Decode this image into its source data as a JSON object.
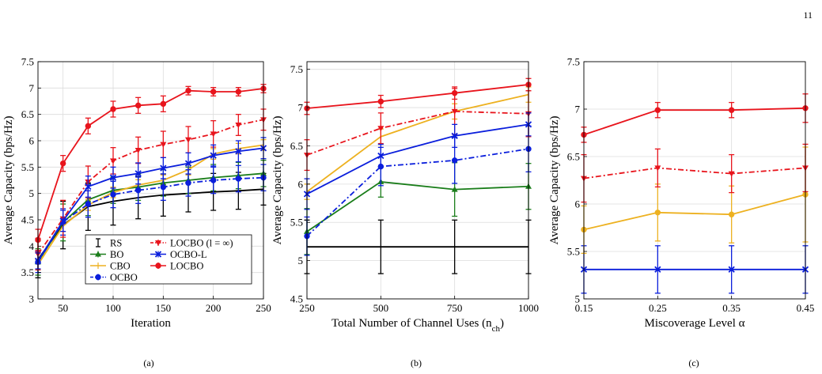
{
  "page_number": "11",
  "chart_data": [
    {
      "id": "a",
      "type": "line",
      "panel_label": "(a)",
      "xlabel": "Iteration",
      "ylabel": "Average Capacity (bps/Hz)",
      "xlim": [
        25,
        250
      ],
      "ylim": [
        3,
        7.5
      ],
      "xticks": [
        50,
        100,
        150,
        200,
        250
      ],
      "yticks": [
        3,
        3.5,
        4,
        4.5,
        5,
        5.5,
        6,
        6.5,
        7,
        7.5
      ],
      "ytick_labels": [
        "3",
        "3.5",
        "4",
        "4.5",
        "5",
        "5.5",
        "6",
        "6.5",
        "7",
        "7.5"
      ],
      "grid": true,
      "legend": {
        "placement": "bottom-center",
        "columns": 2,
        "entries": [
          {
            "name": "RS",
            "ref": "RS"
          },
          {
            "name": "BO",
            "ref": "BO"
          },
          {
            "name": "CBO",
            "ref": "CBO"
          },
          {
            "name": "OCBO",
            "ref": "OCBO"
          },
          {
            "name": "LOCBO (l = ∞)",
            "ref": "LOCBO_inf"
          },
          {
            "name": "OCBO-L",
            "ref": "OCBO-L"
          },
          {
            "name": "LOCBO",
            "ref": "LOCBO"
          }
        ]
      },
      "series": [
        {
          "name": "RS",
          "ref": "RS",
          "color": "#000000",
          "dash": "solid",
          "marker": "none",
          "x": [
            25,
            50,
            75,
            100,
            125,
            150,
            175,
            200,
            225,
            250
          ],
          "y": [
            3.75,
            4.4,
            4.75,
            4.85,
            4.92,
            4.97,
            5.0,
            5.03,
            5.05,
            5.08
          ],
          "err": [
            0.35,
            0.45,
            0.45,
            0.45,
            0.4,
            0.4,
            0.35,
            0.35,
            0.35,
            0.3
          ]
        },
        {
          "name": "BO",
          "ref": "BO",
          "color": "#1a7d1a",
          "dash": "solid",
          "marker": "^",
          "x": [
            25,
            50,
            75,
            100,
            125,
            150,
            175,
            200,
            225,
            250
          ],
          "y": [
            3.7,
            4.45,
            4.88,
            5.06,
            5.12,
            5.2,
            5.25,
            5.3,
            5.34,
            5.38
          ],
          "err": [
            0.25,
            0.35,
            0.3,
            0.25,
            0.25,
            0.25,
            0.25,
            0.25,
            0.25,
            0.25
          ]
        },
        {
          "name": "CBO",
          "ref": "CBO",
          "color": "#edb120",
          "dash": "solid",
          "marker": "none",
          "x": [
            25,
            50,
            75,
            100,
            125,
            150,
            175,
            200,
            225,
            250
          ],
          "y": [
            3.65,
            4.38,
            4.78,
            5.02,
            5.16,
            5.25,
            5.45,
            5.75,
            5.85,
            5.92
          ],
          "err": [
            0.1,
            0.1,
            0.1,
            0.1,
            0.1,
            0.1,
            0.1,
            0.1,
            0.1,
            0.1
          ]
        },
        {
          "name": "OCBO",
          "ref": "OCBO",
          "color": "#0a1edc",
          "dash": "dashdot",
          "marker": "o",
          "x": [
            25,
            50,
            75,
            100,
            125,
            150,
            175,
            200,
            225,
            250
          ],
          "y": [
            3.7,
            4.46,
            4.8,
            4.98,
            5.06,
            5.12,
            5.2,
            5.25,
            5.28,
            5.3
          ],
          "err": [
            0.2,
            0.25,
            0.25,
            0.25,
            0.25,
            0.25,
            0.25,
            0.25,
            0.25,
            0.25
          ]
        },
        {
          "name": "LOCBO (l = ∞)",
          "ref": "LOCBO_inf",
          "color": "#e8141c",
          "dash": "dashdot",
          "marker": "v",
          "x": [
            25,
            50,
            75,
            100,
            125,
            150,
            175,
            200,
            225,
            250
          ],
          "y": [
            3.85,
            4.52,
            5.22,
            5.62,
            5.82,
            5.93,
            6.02,
            6.13,
            6.3,
            6.4
          ],
          "err": [
            0.3,
            0.35,
            0.3,
            0.25,
            0.25,
            0.25,
            0.25,
            0.25,
            0.2,
            0.2
          ]
        },
        {
          "name": "OCBO-L",
          "ref": "OCBO-L",
          "color": "#0a1edc",
          "dash": "solid",
          "marker": "x",
          "x": [
            25,
            50,
            75,
            100,
            125,
            150,
            175,
            200,
            225,
            250
          ],
          "y": [
            3.72,
            4.48,
            5.13,
            5.3,
            5.38,
            5.48,
            5.57,
            5.72,
            5.8,
            5.86
          ],
          "err": [
            0.15,
            0.2,
            0.2,
            0.2,
            0.2,
            0.2,
            0.2,
            0.2,
            0.2,
            0.2
          ]
        },
        {
          "name": "LOCBO",
          "ref": "LOCBO",
          "color": "#e8141c",
          "dash": "solid",
          "marker": "o",
          "x": [
            25,
            50,
            75,
            100,
            125,
            150,
            175,
            200,
            225,
            250
          ],
          "y": [
            4.12,
            5.57,
            6.28,
            6.6,
            6.67,
            6.7,
            6.95,
            6.93,
            6.93,
            6.99
          ],
          "err": [
            0.2,
            0.15,
            0.15,
            0.15,
            0.15,
            0.15,
            0.08,
            0.08,
            0.08,
            0.08
          ]
        }
      ]
    },
    {
      "id": "b",
      "type": "line",
      "panel_label": "(b)",
      "xlabel": "Total Number of Channel Uses (n",
      "xlabel_sub": "ch",
      "xlabel_end": ")",
      "ylabel": "Average Capacity (bps/Hz)",
      "xlim": [
        250,
        1000
      ],
      "ylim": [
        4.5,
        7.6
      ],
      "xticks": [
        250,
        500,
        750,
        1000
      ],
      "yticks": [
        4.5,
        5,
        5.5,
        6,
        6.5,
        7,
        7.5
      ],
      "ytick_labels": [
        "4.5",
        "5",
        "5.5",
        "6",
        "6.5",
        "7",
        "7.5"
      ],
      "grid": true,
      "series": [
        {
          "ref": "RS",
          "color": "#000000",
          "dash": "solid",
          "marker": "none",
          "x": [
            250,
            500,
            750,
            1000
          ],
          "y": [
            5.18,
            5.18,
            5.18,
            5.18
          ],
          "err": [
            0.35,
            0.35,
            0.35,
            0.35
          ]
        },
        {
          "ref": "BO",
          "color": "#1a7d1a",
          "dash": "solid",
          "marker": "^",
          "x": [
            250,
            500,
            750,
            1000
          ],
          "y": [
            5.38,
            6.03,
            5.93,
            5.97
          ],
          "err": [
            0.3,
            0.2,
            0.35,
            0.3
          ]
        },
        {
          "ref": "CBO",
          "color": "#edb120",
          "dash": "solid",
          "marker": "none",
          "x": [
            250,
            500,
            750,
            1000
          ],
          "y": [
            5.9,
            6.62,
            6.95,
            7.17
          ],
          "err": [
            0.1,
            0.1,
            0.1,
            0.1
          ]
        },
        {
          "ref": "OCBO",
          "color": "#0a1edc",
          "dash": "dashdot",
          "marker": "o",
          "x": [
            250,
            500,
            750,
            1000
          ],
          "y": [
            5.32,
            6.23,
            6.31,
            6.46
          ],
          "err": [
            0.25,
            0.25,
            0.3,
            0.3
          ]
        },
        {
          "ref": "LOCBO_inf",
          "color": "#e8141c",
          "dash": "dashdot",
          "marker": "v",
          "x": [
            250,
            500,
            750,
            1000
          ],
          "y": [
            6.38,
            6.73,
            6.95,
            6.92
          ],
          "err": [
            0.2,
            0.2,
            0.3,
            0.3
          ]
        },
        {
          "ref": "OCBO-L",
          "color": "#0a1edc",
          "dash": "solid",
          "marker": "x",
          "x": [
            250,
            500,
            750,
            1000
          ],
          "y": [
            5.87,
            6.37,
            6.63,
            6.78
          ],
          "err": [
            0.2,
            0.15,
            0.15,
            0.15
          ]
        },
        {
          "ref": "LOCBO",
          "color": "#e8141c",
          "dash": "solid",
          "marker": "o",
          "x": [
            250,
            500,
            750,
            1000
          ],
          "y": [
            6.99,
            7.08,
            7.19,
            7.3
          ],
          "err": [
            0.08,
            0.08,
            0.08,
            0.08
          ]
        }
      ]
    },
    {
      "id": "c",
      "type": "line",
      "panel_label": "(c)",
      "xlabel": "Miscoverage Level α",
      "ylabel": "Average Capacity (bps/Hz)",
      "xlim": [
        0.15,
        0.45
      ],
      "ylim": [
        5,
        7.5
      ],
      "xticks": [
        0.15,
        0.25,
        0.35,
        0.45
      ],
      "xtick_labels": [
        "0.15",
        "0.25",
        "0.35",
        "0.45"
      ],
      "yticks": [
        5,
        5.5,
        6,
        6.5,
        7,
        7.5
      ],
      "ytick_labels": [
        "5",
        "5.5",
        "6",
        "6.5",
        "7",
        "7.5"
      ],
      "grid": true,
      "series": [
        {
          "ref": "OCBO",
          "color": "#0a1edc",
          "dash": "solid",
          "marker": "x",
          "x": [
            0.15,
            0.25,
            0.35,
            0.45
          ],
          "y": [
            5.31,
            5.31,
            5.31,
            5.31
          ],
          "err": [
            0.25,
            0.25,
            0.25,
            0.25
          ]
        },
        {
          "ref": "CBO",
          "color": "#edb120",
          "dash": "solid",
          "marker": "o",
          "x": [
            0.15,
            0.25,
            0.35,
            0.45
          ],
          "y": [
            5.73,
            5.91,
            5.89,
            6.1
          ],
          "err": [
            0.25,
            0.3,
            0.3,
            0.5
          ]
        },
        {
          "ref": "LOCBO_inf",
          "color": "#e8141c",
          "dash": "dashdot",
          "marker": "v",
          "x": [
            0.15,
            0.25,
            0.35,
            0.45
          ],
          "y": [
            6.27,
            6.38,
            6.32,
            6.38
          ],
          "err": [
            0.25,
            0.2,
            0.2,
            0.25
          ]
        },
        {
          "ref": "LOCBO",
          "color": "#e8141c",
          "dash": "solid",
          "marker": "o",
          "x": [
            0.15,
            0.25,
            0.35,
            0.45
          ],
          "y": [
            6.73,
            6.99,
            6.99,
            7.01
          ],
          "err": [
            0.08,
            0.08,
            0.08,
            0.15
          ]
        }
      ]
    }
  ]
}
